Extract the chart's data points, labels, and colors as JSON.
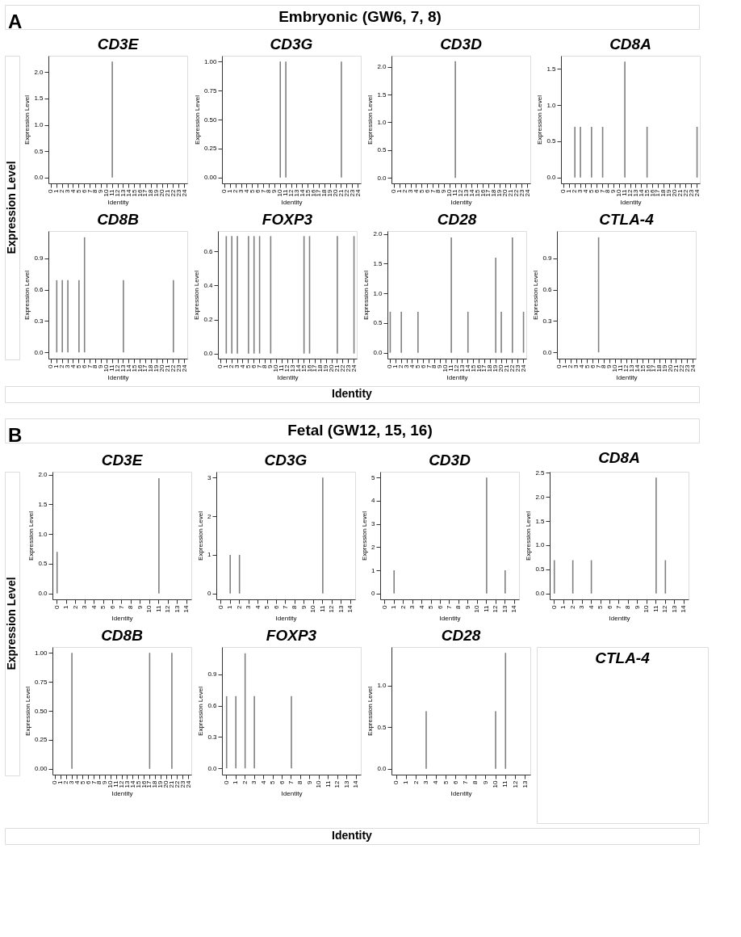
{
  "chart_data": [
    {
      "type": "other",
      "title": "Embryonic (GW6, 7, 8)",
      "annotations": [
        "A"
      ],
      "xlabel": "Identity",
      "ylabel": "Expression Level"
    },
    {
      "type": "bar",
      "title": "CD3E",
      "xlabel": "Identity",
      "ylabel": "Expression Level",
      "color": "#808080",
      "categories": [
        "0",
        "1",
        "2",
        "3",
        "4",
        "5",
        "6",
        "7",
        "8",
        "9",
        "10",
        "11",
        "12",
        "13",
        "14",
        "15",
        "16",
        "17",
        "18",
        "19",
        "20",
        "21",
        "22",
        "23",
        "24"
      ],
      "values": [
        0,
        0,
        0,
        0,
        0,
        0,
        0,
        0,
        0,
        0,
        0,
        2.2,
        0,
        0,
        0,
        0,
        0,
        0,
        0,
        0,
        0,
        0,
        0,
        0,
        0
      ],
      "ylim": [
        -0.11,
        2.31
      ],
      "yticks": [
        {
          "value": 0,
          "label": "0.0"
        },
        {
          "value": 0.5,
          "label": "0.5"
        },
        {
          "value": 1,
          "label": "1.0"
        },
        {
          "value": 1.5,
          "label": "1.5"
        },
        {
          "value": 2,
          "label": "2.0"
        }
      ]
    },
    {
      "type": "bar",
      "title": "CD3G",
      "xlabel": "Identity",
      "ylabel": "Expression Level",
      "color": "#808080",
      "categories": [
        "0",
        "1",
        "2",
        "3",
        "4",
        "5",
        "6",
        "7",
        "8",
        "9",
        "10",
        "11",
        "12",
        "13",
        "14",
        "15",
        "16",
        "17",
        "18",
        "19",
        "20",
        "21",
        "22",
        "23",
        "24"
      ],
      "values": [
        0,
        0,
        0,
        0,
        0,
        0,
        0,
        0,
        0,
        0,
        1,
        1,
        0,
        0,
        0,
        0,
        0,
        0,
        0,
        0,
        0,
        1,
        0,
        0,
        0
      ],
      "ylim": [
        -0.05,
        1.05
      ],
      "yticks": [
        {
          "value": 0,
          "label": "0.00"
        },
        0.25,
        {
          "value": 0.5,
          "label": "0.50"
        },
        0.75,
        {
          "value": 1,
          "label": "1.00"
        }
      ]
    },
    {
      "type": "bar",
      "title": "CD3D",
      "xlabel": "Identity",
      "ylabel": "Expression Level",
      "color": "#808080",
      "categories": [
        "0",
        "1",
        "2",
        "3",
        "4",
        "5",
        "6",
        "7",
        "8",
        "9",
        "10",
        "11",
        "12",
        "13",
        "14",
        "15",
        "16",
        "17",
        "18",
        "19",
        "20",
        "21",
        "22",
        "23",
        "24"
      ],
      "values": [
        0,
        0,
        0,
        0,
        0,
        0,
        0,
        0,
        0,
        0,
        0,
        2.1,
        0,
        0,
        0,
        0,
        0,
        0,
        0,
        0,
        0,
        0,
        0,
        0,
        0
      ],
      "ylim": [
        -0.1,
        2.2
      ],
      "yticks": [
        {
          "value": 0,
          "label": "0.0"
        },
        0.5,
        {
          "value": 1,
          "label": "1.0"
        },
        1.5,
        {
          "value": 2,
          "label": "2.0"
        }
      ]
    },
    {
      "type": "bar",
      "title": "CD8A",
      "xlabel": "Identity",
      "ylabel": "Expression Level",
      "color": "#808080",
      "categories": [
        "0",
        "1",
        "2",
        "3",
        "4",
        "5",
        "6",
        "7",
        "8",
        "9",
        "10",
        "11",
        "12",
        "13",
        "14",
        "15",
        "16",
        "17",
        "18",
        "19",
        "20",
        "21",
        "22",
        "23",
        "24"
      ],
      "values": [
        0,
        0,
        0.7,
        0.7,
        0,
        0.7,
        0,
        0.7,
        0,
        0,
        0,
        1.6,
        0,
        0,
        0,
        0.7,
        0,
        0,
        0,
        0,
        0,
        0,
        0,
        0,
        0.7
      ],
      "ylim": [
        -0.08,
        1.68
      ],
      "yticks": [
        {
          "value": 0,
          "label": "0.0"
        },
        0.5,
        {
          "value": 1,
          "label": "1.0"
        },
        1.5
      ]
    },
    {
      "type": "bar",
      "title": "CD8B",
      "xlabel": "Identity",
      "ylabel": "Expression Level",
      "color": "#808080",
      "categories": [
        "0",
        "1",
        "2",
        "3",
        "4",
        "5",
        "6",
        "7",
        "8",
        "9",
        "10",
        "11",
        "12",
        "13",
        "14",
        "15",
        "16",
        "17",
        "18",
        "19",
        "20",
        "21",
        "22",
        "23",
        "24"
      ],
      "values": [
        0,
        0.69,
        0.69,
        0.69,
        0,
        0.69,
        1.1,
        0,
        0,
        0,
        0,
        0,
        0,
        0.69,
        0,
        0,
        0,
        0,
        0,
        0,
        0,
        0,
        0.69,
        0,
        0
      ],
      "ylim": [
        -0.06,
        1.16
      ],
      "yticks": [
        {
          "value": 0,
          "label": "0.0"
        },
        0.3,
        0.6,
        0.9
      ]
    },
    {
      "type": "bar",
      "title": "FOXP3",
      "xlabel": "Identity",
      "ylabel": "Expression Level",
      "color": "#808080",
      "categories": [
        "0",
        "1",
        "2",
        "3",
        "4",
        "5",
        "6",
        "7",
        "8",
        "9",
        "10",
        "11",
        "12",
        "13",
        "14",
        "15",
        "16",
        "17",
        "18",
        "19",
        "20",
        "21",
        "22",
        "23",
        "24"
      ],
      "values": [
        0,
        0.69,
        0.69,
        0.69,
        0,
        0.69,
        0.69,
        0.69,
        0,
        0.69,
        0,
        0,
        0,
        0,
        0,
        0.69,
        0.69,
        0,
        0,
        0,
        0,
        0.69,
        0,
        0,
        0.69
      ],
      "ylim": [
        -0.03,
        0.72
      ],
      "yticks": [
        {
          "value": 0,
          "label": "0.0"
        },
        0.2,
        0.4,
        0.6
      ]
    },
    {
      "type": "bar",
      "title": "CD28",
      "xlabel": "Identity",
      "ylabel": "Expression Level",
      "color": "#808080",
      "categories": [
        "0",
        "1",
        "2",
        "3",
        "4",
        "5",
        "6",
        "7",
        "8",
        "9",
        "10",
        "11",
        "12",
        "13",
        "14",
        "15",
        "16",
        "17",
        "18",
        "19",
        "20",
        "21",
        "22",
        "23",
        "24"
      ],
      "values": [
        0.69,
        0,
        0.69,
        0,
        0,
        0.69,
        0,
        0,
        0,
        0,
        0,
        1.94,
        0,
        0,
        0.69,
        0,
        0,
        0,
        0,
        1.6,
        0.69,
        0,
        1.94,
        0,
        0.69
      ],
      "ylim": [
        -0.1,
        2.05
      ],
      "yticks": [
        {
          "value": 0,
          "label": "0.0"
        },
        0.5,
        {
          "value": 1,
          "label": "1.0"
        },
        1.5,
        {
          "value": 2,
          "label": "2.0"
        }
      ]
    },
    {
      "type": "bar",
      "title": "CTLA-4",
      "xlabel": "Identity",
      "ylabel": "Expression Level",
      "color": "#808080",
      "categories": [
        "0",
        "1",
        "2",
        "3",
        "4",
        "5",
        "6",
        "7",
        "8",
        "9",
        "10",
        "11",
        "12",
        "13",
        "14",
        "15",
        "16",
        "17",
        "18",
        "19",
        "20",
        "21",
        "22",
        "23",
        "24"
      ],
      "values": [
        0,
        0,
        0,
        0,
        0,
        0,
        0,
        1.1,
        0,
        0,
        0,
        0,
        0,
        0,
        0,
        0,
        0,
        0,
        0,
        0,
        0,
        0,
        0,
        0,
        0
      ],
      "ylim": [
        -0.06,
        1.16
      ],
      "yticks": [
        {
          "value": 0,
          "label": "0.0"
        },
        0.3,
        0.6,
        0.9
      ]
    },
    {
      "type": "other",
      "title": "Fetal (GW12, 15, 16)",
      "annotations": [
        "B"
      ],
      "xlabel": "Identity",
      "ylabel": "Expression Level"
    },
    {
      "type": "bar",
      "title": "CD3E",
      "xlabel": "Identity",
      "ylabel": "Expression Level",
      "color": "#808080",
      "categories": [
        "0",
        "1",
        "2",
        "3",
        "4",
        "5",
        "6",
        "7",
        "8",
        "9",
        "10",
        "11",
        "12",
        "13",
        "14"
      ],
      "values": [
        0.7,
        0,
        0,
        0,
        0,
        0,
        0,
        0,
        0,
        0,
        0,
        1.94,
        0,
        0,
        0
      ],
      "ylim": [
        -0.1,
        2.05
      ],
      "yticks": [
        {
          "value": 0,
          "label": "0.0"
        },
        0.5,
        {
          "value": 1,
          "label": "1.0"
        },
        1.5,
        {
          "value": 2,
          "label": "2.0"
        }
      ]
    },
    {
      "type": "bar",
      "title": "CD3G",
      "xlabel": "Identity",
      "ylabel": "Expression Level",
      "color": "#808080",
      "categories": [
        "0",
        "1",
        "2",
        "3",
        "4",
        "5",
        "6",
        "7",
        "8",
        "9",
        "10",
        "11",
        "12",
        "13",
        "14"
      ],
      "values": [
        0,
        1,
        1,
        0,
        0,
        0,
        0,
        0,
        0,
        0,
        0,
        3,
        0,
        0,
        0
      ],
      "ylim": [
        -0.15,
        3.15
      ],
      "yticks": [
        0,
        1,
        2,
        3
      ]
    },
    {
      "type": "bar",
      "title": "CD3D",
      "xlabel": "Identity",
      "ylabel": "Expression Level",
      "color": "#808080",
      "categories": [
        "0",
        "1",
        "2",
        "3",
        "4",
        "5",
        "6",
        "7",
        "8",
        "9",
        "10",
        "11",
        "12",
        "13",
        "14"
      ],
      "values": [
        0,
        1,
        0,
        0,
        0,
        0,
        0,
        0,
        0,
        0,
        0,
        5,
        0,
        1,
        0
      ],
      "ylim": [
        -0.25,
        5.25
      ],
      "yticks": [
        0,
        1,
        2,
        3,
        4,
        5
      ]
    },
    {
      "type": "bar",
      "title": "CD8A",
      "xlabel": "Identity",
      "ylabel": "Expression Level",
      "color": "#808080",
      "categories": [
        "0",
        "1",
        "2",
        "3",
        "4",
        "5",
        "6",
        "7",
        "8",
        "9",
        "10",
        "11",
        "12",
        "13",
        "14"
      ],
      "values": [
        0.69,
        0,
        0.69,
        0,
        0.69,
        0,
        0,
        0,
        0,
        0,
        0,
        2.4,
        0.69,
        0,
        0
      ],
      "ylim": [
        -0.12,
        2.52
      ],
      "yticks": [
        {
          "value": 0,
          "label": "0.0"
        },
        0.5,
        {
          "value": 1,
          "label": "1.0"
        },
        1.5,
        {
          "value": 2,
          "label": "2.0"
        },
        2.5
      ]
    },
    {
      "type": "bar",
      "title": "CD8B",
      "xlabel": "Identity",
      "ylabel": "Expression Level",
      "color": "#808080",
      "categories": [
        "0",
        "1",
        "2",
        "3",
        "4",
        "5",
        "6",
        "7",
        "8",
        "9",
        "10",
        "11",
        "12",
        "13",
        "14",
        "15",
        "16",
        "17",
        "18",
        "19",
        "20",
        "21",
        "22",
        "23",
        "24"
      ],
      "values": [
        0,
        0,
        0,
        1,
        0,
        0,
        0,
        0,
        0,
        0,
        0,
        0,
        0,
        0,
        0,
        0,
        0,
        1,
        0,
        0,
        0,
        1,
        0,
        0,
        0
      ],
      "ylim": [
        -0.05,
        1.05
      ],
      "yticks": [
        {
          "value": 0,
          "label": "0.00"
        },
        0.25,
        {
          "value": 0.5,
          "label": "0.50"
        },
        0.75,
        {
          "value": 1,
          "label": "1.00"
        }
      ]
    },
    {
      "type": "bar",
      "title": "FOXP3",
      "xlabel": "Identity",
      "ylabel": "Expression Level",
      "color": "#808080",
      "categories": [
        "0",
        "1",
        "2",
        "3",
        "4",
        "5",
        "6",
        "7",
        "8",
        "9",
        "10",
        "11",
        "12",
        "13",
        "14"
      ],
      "values": [
        0.69,
        0.69,
        1.1,
        0.69,
        0,
        0,
        0,
        0.69,
        0,
        0,
        0,
        0,
        0,
        0,
        0
      ],
      "ylim": [
        -0.06,
        1.16
      ],
      "yticks": [
        {
          "value": 0,
          "label": "0.0"
        },
        0.3,
        0.6,
        0.9
      ]
    },
    {
      "type": "bar",
      "title": "CD28",
      "xlabel": "Identity",
      "ylabel": "Expression Level",
      "color": "#808080",
      "categories": [
        "0",
        "1",
        "2",
        "3",
        "4",
        "5",
        "6",
        "7",
        "8",
        "9",
        "10",
        "11",
        "12",
        "13"
      ],
      "values": [
        0,
        0,
        0,
        0.69,
        0,
        0,
        0,
        0,
        0,
        0,
        0.69,
        1.39,
        0,
        0
      ],
      "ylim": [
        -0.07,
        1.46
      ],
      "yticks": [
        {
          "value": 0,
          "label": "0.0"
        },
        0.5,
        {
          "value": 1,
          "label": "1.0"
        }
      ]
    },
    {
      "type": "other",
      "title": "CTLA-4"
    }
  ]
}
